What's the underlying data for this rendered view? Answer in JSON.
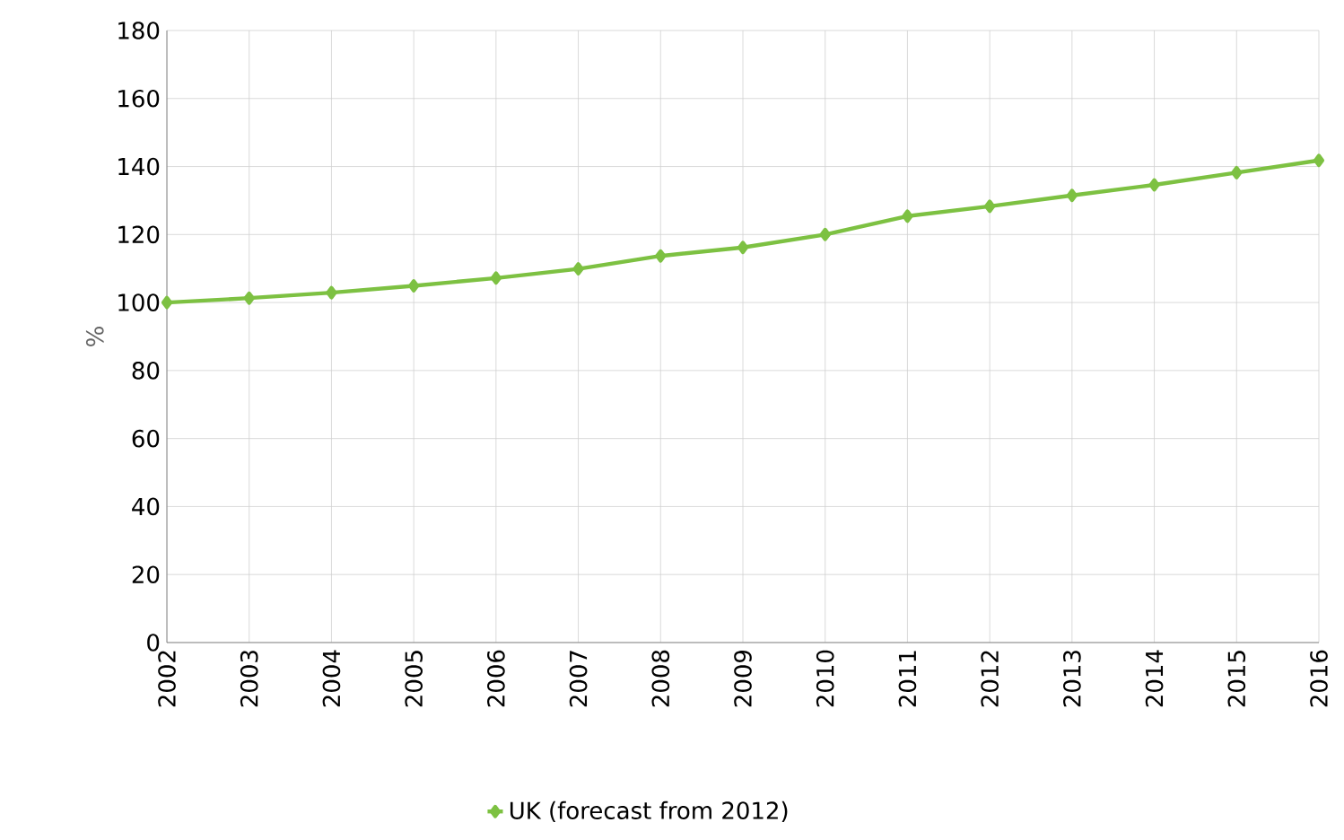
{
  "chart_data": {
    "type": "line",
    "ylabel": "%",
    "categories": [
      "2002",
      "2003",
      "2004",
      "2005",
      "2006",
      "2007",
      "2008",
      "2009",
      "2010",
      "2011",
      "2012",
      "2013",
      "2014",
      "2015",
      "2016"
    ],
    "series": [
      {
        "name": "UK (forecast from 2012)",
        "color": "#7dc142",
        "values": [
          100,
          101.3,
          102.9,
          104.9,
          107.2,
          109.9,
          113.7,
          116.2,
          120,
          125.4,
          128.3,
          131.5,
          134.6,
          138.2,
          141.8
        ]
      }
    ],
    "ylim": [
      0,
      180
    ],
    "yticks": [
      0,
      20,
      40,
      60,
      80,
      100,
      120,
      140,
      160,
      180
    ],
    "grid": true,
    "legend": "bottom",
    "marker": "diamond",
    "line_style": "solid"
  }
}
